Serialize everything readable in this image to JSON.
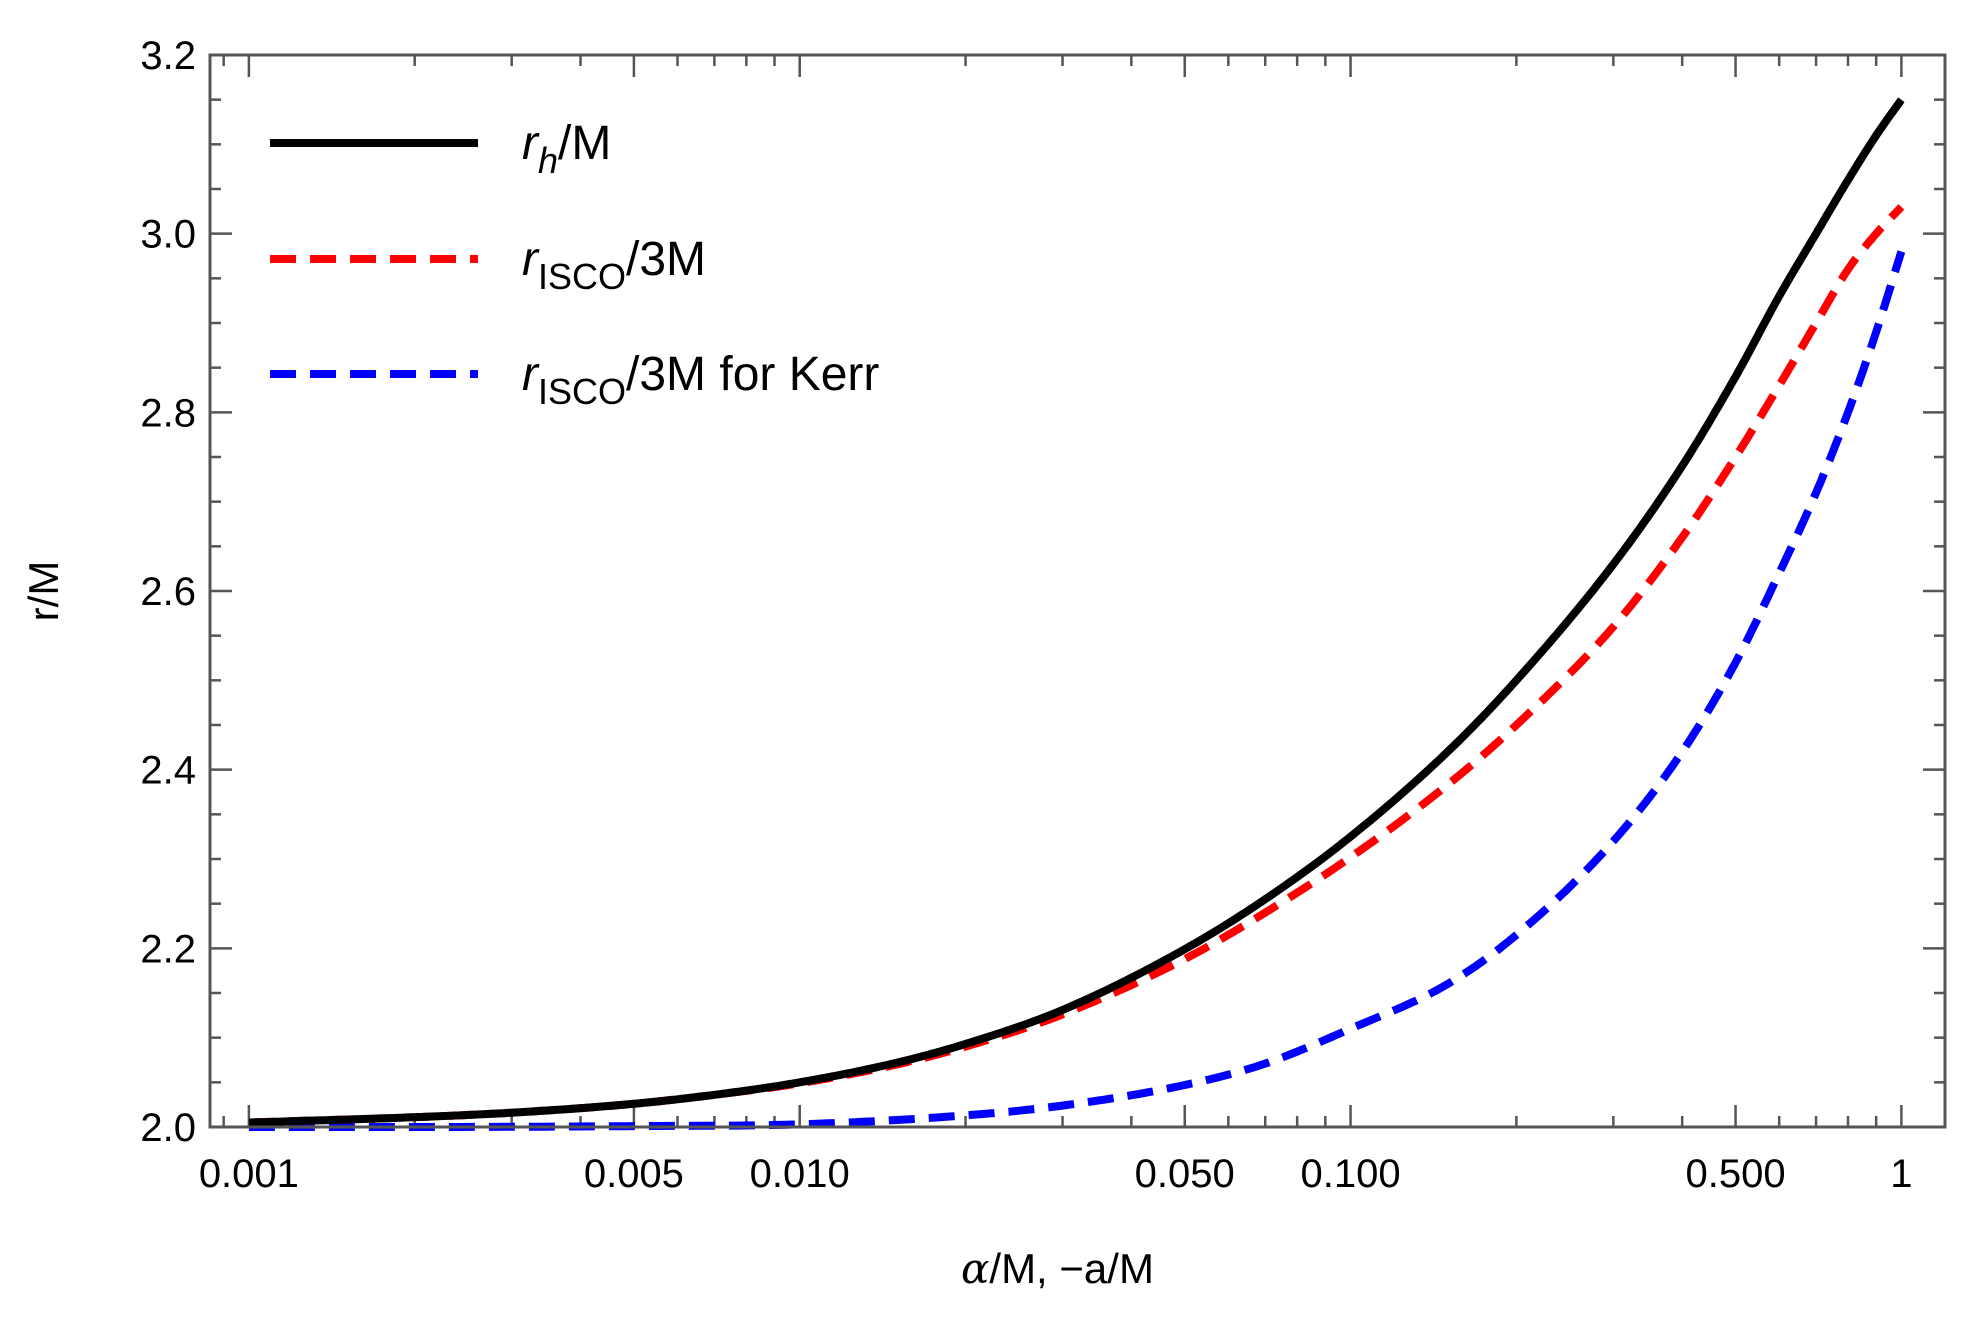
{
  "chart_data": {
    "type": "line",
    "title": "",
    "xlabel": "α/M, −a/M",
    "ylabel": "r/M",
    "xscale": "log",
    "xlim": [
      0.00085,
      1.2
    ],
    "ylim": [
      2.0,
      3.2
    ],
    "x_ticks": [
      {
        "value": 0.001,
        "label": "0.001"
      },
      {
        "value": 0.005,
        "label": "0.005"
      },
      {
        "value": 0.01,
        "label": "0.010"
      },
      {
        "value": 0.05,
        "label": "0.050"
      },
      {
        "value": 0.1,
        "label": "0.100"
      },
      {
        "value": 0.5,
        "label": "0.500"
      },
      {
        "value": 1,
        "label": "1"
      }
    ],
    "y_ticks": [
      {
        "value": 2.0,
        "label": "2.0"
      },
      {
        "value": 2.2,
        "label": "2.2"
      },
      {
        "value": 2.4,
        "label": "2.4"
      },
      {
        "value": 2.6,
        "label": "2.6"
      },
      {
        "value": 2.8,
        "label": "2.8"
      },
      {
        "value": 3.0,
        "label": "3.0"
      },
      {
        "value": 3.2,
        "label": "3.2"
      }
    ],
    "legend_position": "top-left",
    "series": [
      {
        "name": "r_h/M",
        "legend_main": "r",
        "legend_sub": "h",
        "legend_suffix": "/M",
        "color": "#000000",
        "style": "solid",
        "x": [
          0.001,
          0.002,
          0.003,
          0.005,
          0.007,
          0.01,
          0.015,
          0.02,
          0.03,
          0.05,
          0.07,
          0.1,
          0.15,
          0.2,
          0.3,
          0.4,
          0.5,
          0.6,
          0.7,
          0.8,
          0.9,
          1.0
        ],
        "y": [
          2.005,
          2.011,
          2.016,
          2.026,
          2.036,
          2.05,
          2.072,
          2.093,
          2.131,
          2.199,
          2.255,
          2.325,
          2.42,
          2.5,
          2.63,
          2.74,
          2.84,
          2.93,
          3.0,
          3.06,
          3.11,
          3.15
        ]
      },
      {
        "name": "r_ISCO/3M",
        "legend_main": "r",
        "legend_sub": "ISCO",
        "legend_suffix": "/3M",
        "color": "#ff0000",
        "style": "dashed",
        "x": [
          0.001,
          0.002,
          0.003,
          0.005,
          0.007,
          0.01,
          0.015,
          0.02,
          0.03,
          0.05,
          0.07,
          0.1,
          0.15,
          0.2,
          0.3,
          0.4,
          0.5,
          0.6,
          0.7,
          0.8,
          0.9,
          1.0
        ],
        "y": [
          2.005,
          2.011,
          2.016,
          2.026,
          2.036,
          2.049,
          2.07,
          2.09,
          2.126,
          2.188,
          2.24,
          2.302,
          2.383,
          2.45,
          2.56,
          2.66,
          2.75,
          2.83,
          2.9,
          2.96,
          3.0,
          3.03
        ]
      },
      {
        "name": "r_ISCO/3M for Kerr",
        "legend_main": "r",
        "legend_sub": "ISCO",
        "legend_suffix": "/3M for Kerr",
        "color": "#0000ff",
        "style": "dashed",
        "x": [
          0.001,
          0.002,
          0.005,
          0.01,
          0.02,
          0.03,
          0.05,
          0.07,
          0.1,
          0.15,
          0.2,
          0.3,
          0.4,
          0.5,
          0.6,
          0.7,
          0.8,
          0.9,
          1.0
        ],
        "y": [
          2.0,
          2.0,
          2.001,
          2.003,
          2.013,
          2.024,
          2.047,
          2.071,
          2.11,
          2.16,
          2.215,
          2.32,
          2.42,
          2.52,
          2.62,
          2.71,
          2.8,
          2.89,
          2.98
        ]
      }
    ]
  }
}
